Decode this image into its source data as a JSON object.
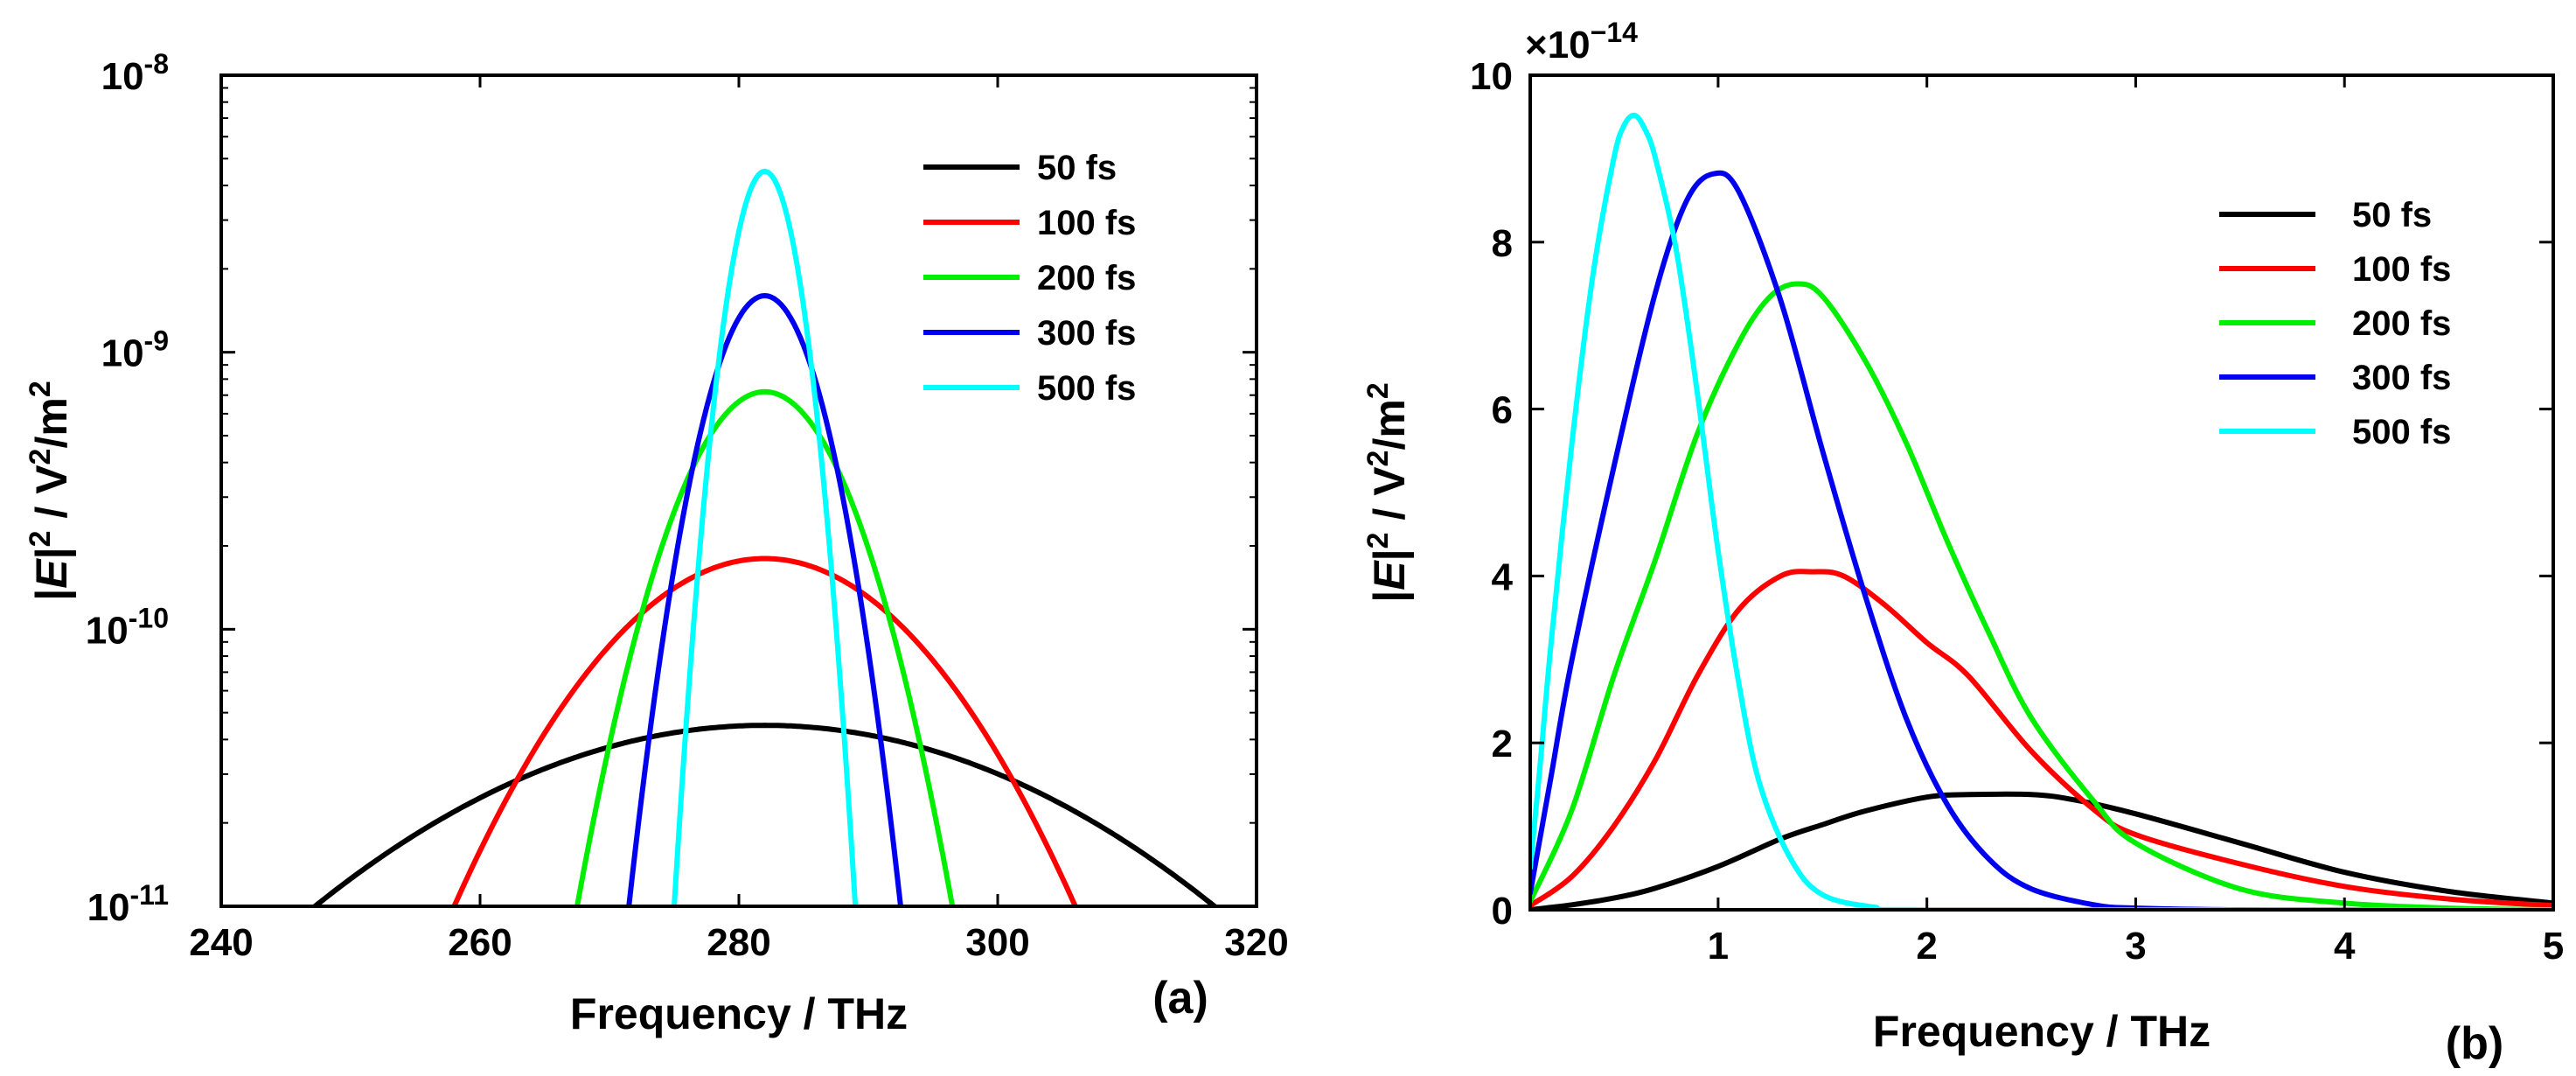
{
  "colors": {
    "50 fs": "#000000",
    "100 fs": "#ff0000",
    "200 fs": "#00ee00",
    "300 fs": "#0000ee",
    "500 fs": "#00ffff"
  },
  "chart_data": [
    {
      "panel": "(a)",
      "type": "line",
      "xlabel": "Frequency / THz",
      "ylabel_parts": [
        "|",
        "E",
        "|",
        "2",
        " / V",
        "2",
        "/m",
        "2"
      ],
      "xlim": [
        240,
        320
      ],
      "xticks": [
        240,
        260,
        280,
        300,
        320
      ],
      "yscale": "log",
      "ylim": [
        1e-11,
        1e-08
      ],
      "yticks": [
        {
          "mantissa": "10",
          "exp": "-11",
          "value": 1e-11
        },
        {
          "mantissa": "10",
          "exp": "-10",
          "value": 1e-10
        },
        {
          "mantissa": "10",
          "exp": "-9",
          "value": 1e-09
        },
        {
          "mantissa": "10",
          "exp": "-8",
          "value": 1e-08
        }
      ],
      "legend_position": "top-right",
      "center_frequency": 282,
      "series": [
        {
          "name": "50 fs",
          "peak": 4.5e-11,
          "x_at_ylim_min": [
            247,
            316.5
          ]
        },
        {
          "name": "100 fs",
          "peak": 1.8e-10,
          "x_at_ylim_min": [
            258,
            306
          ]
        },
        {
          "name": "200 fs",
          "peak": 7.2e-10,
          "x_at_ylim_min": [
            267.5,
            296.5
          ]
        },
        {
          "name": "300 fs",
          "peak": 1.6e-09,
          "x_at_ylim_min": [
            271.5,
            292.5
          ]
        },
        {
          "name": "500 fs",
          "peak": 4.5e-09,
          "x_at_ylim_min": [
            275,
            289
          ]
        }
      ]
    },
    {
      "panel": "(b)",
      "type": "line",
      "xlabel": "Frequency / THz",
      "ylabel_parts": [
        "|",
        "E",
        "|",
        "2",
        " / V",
        "2",
        "/m",
        "2"
      ],
      "xlim": [
        0.1,
        5
      ],
      "xticks": [
        1,
        2,
        3,
        4,
        5
      ],
      "ylim": [
        0,
        10
      ],
      "yticks": [
        0,
        2,
        4,
        6,
        8,
        10
      ],
      "y_multiplier": {
        "base": "×10",
        "exp": "−14"
      },
      "legend_position": "top-right",
      "series": [
        {
          "name": "50 fs",
          "x": [
            0.1,
            0.3,
            0.5,
            0.7,
            1.0,
            1.3,
            1.5,
            1.7,
            2.0,
            2.2,
            2.5,
            2.7,
            3.0,
            3.5,
            4.0,
            4.5,
            5.0
          ],
          "y": [
            0.0,
            0.06,
            0.14,
            0.26,
            0.52,
            0.85,
            1.02,
            1.18,
            1.35,
            1.38,
            1.38,
            1.32,
            1.15,
            0.8,
            0.45,
            0.22,
            0.08
          ]
        },
        {
          "name": "100 fs",
          "x": [
            0.1,
            0.3,
            0.5,
            0.7,
            0.9,
            1.1,
            1.3,
            1.45,
            1.6,
            1.8,
            2.0,
            2.2,
            2.5,
            2.8,
            3.0,
            3.5,
            4.0,
            4.5,
            5.0
          ],
          "y": [
            0.05,
            0.4,
            1.0,
            1.8,
            2.8,
            3.6,
            4.0,
            4.05,
            4.0,
            3.65,
            3.2,
            2.8,
            1.9,
            1.2,
            0.9,
            0.55,
            0.28,
            0.13,
            0.05
          ]
        },
        {
          "name": "200 fs",
          "x": [
            0.1,
            0.3,
            0.5,
            0.7,
            0.9,
            1.1,
            1.25,
            1.38,
            1.5,
            1.7,
            1.9,
            2.1,
            2.3,
            2.5,
            2.8,
            3.0,
            3.5,
            4.0,
            4.5,
            5.0
          ],
          "y": [
            0.1,
            1.2,
            2.8,
            4.2,
            5.7,
            6.8,
            7.35,
            7.5,
            7.35,
            6.6,
            5.6,
            4.4,
            3.3,
            2.3,
            1.3,
            0.8,
            0.25,
            0.08,
            0.02,
            0.0
          ]
        },
        {
          "name": "300 fs",
          "x": [
            0.1,
            0.2,
            0.3,
            0.5,
            0.7,
            0.85,
            0.98,
            1.1,
            1.3,
            1.5,
            1.7,
            1.9,
            2.1,
            2.3,
            2.5,
            2.8,
            3.0,
            3.5,
            4.0,
            5.0
          ],
          "y": [
            0.2,
            1.6,
            3.0,
            5.3,
            7.4,
            8.5,
            8.82,
            8.6,
            7.3,
            5.5,
            3.8,
            2.3,
            1.25,
            0.6,
            0.25,
            0.06,
            0.02,
            0.0,
            0.0,
            0.0
          ]
        },
        {
          "name": "500 fs",
          "x": [
            0.1,
            0.15,
            0.2,
            0.3,
            0.4,
            0.5,
            0.55,
            0.6,
            0.65,
            0.7,
            0.8,
            0.9,
            1.0,
            1.1,
            1.2,
            1.35,
            1.5,
            1.75,
            2.0,
            5.0
          ],
          "y": [
            0.5,
            1.8,
            3.2,
            5.6,
            7.6,
            9.0,
            9.4,
            9.52,
            9.35,
            9.0,
            7.9,
            6.2,
            4.3,
            2.7,
            1.5,
            0.6,
            0.18,
            0.03,
            0.0,
            0.0
          ]
        }
      ]
    }
  ],
  "panel_labels": [
    "(a)",
    "(b)"
  ]
}
